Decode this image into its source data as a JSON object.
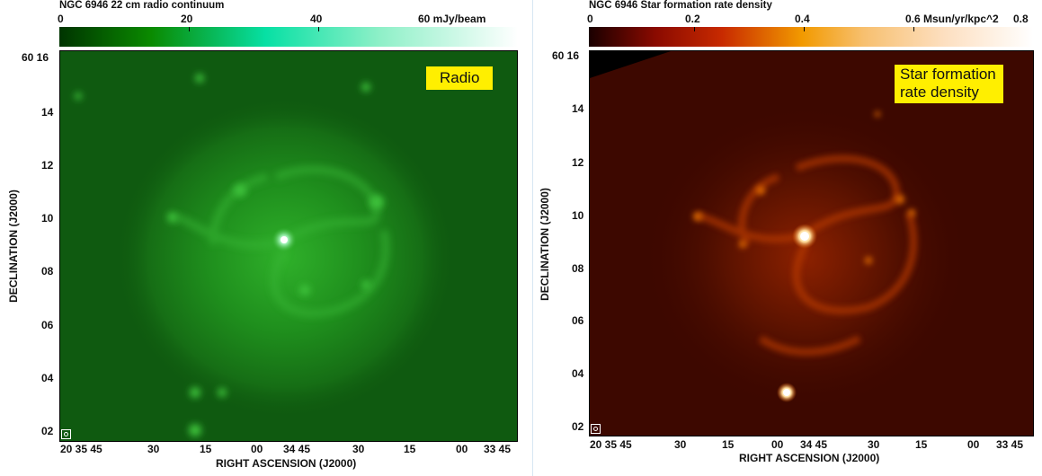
{
  "panels": {
    "radio": {
      "colorbar_title": "NGC 6946  22 cm radio continuum",
      "colorbar_ticks": [
        "0",
        "20",
        "40",
        "60 mJy/beam"
      ],
      "colorbar_colors": [
        "#003400",
        "#0a8a00",
        "#07e0a4",
        "#8ff0c8",
        "#ffffff"
      ],
      "label": "Radio",
      "y_ticks": [
        "60 16",
        "14",
        "12",
        "10",
        "08",
        "06",
        "04",
        "02"
      ],
      "x_ticks": [
        "20 35 45",
        "30",
        "15",
        "00",
        "34 45",
        "30",
        "15",
        "00",
        "33 45"
      ],
      "ylabel": "DECLINATION (J2000)",
      "xlabel": "RIGHT ASCENSION (J2000)"
    },
    "sfr": {
      "colorbar_title": "NGC 6946  Star formation rate density",
      "colorbar_ticks": [
        "0",
        "0.2",
        "0.4",
        "0.6 Msun/yr/kpc^2",
        "0.8"
      ],
      "colorbar_colors": [
        "#1a0000",
        "#8a0a00",
        "#e85d00",
        "#f7a900",
        "#fdd9a8",
        "#ffffff"
      ],
      "label_line1": "Star formation",
      "label_line2": "rate density",
      "y_ticks": [
        "60 16",
        "14",
        "12",
        "10",
        "08",
        "06",
        "04",
        "02"
      ],
      "x_ticks": [
        "20 35 45",
        "30",
        "15",
        "00",
        "34 45",
        "30",
        "15",
        "00",
        "33 45"
      ],
      "ylabel": "DECLINATION (J2000)",
      "xlabel": "RIGHT ASCENSION (J2000)"
    }
  }
}
